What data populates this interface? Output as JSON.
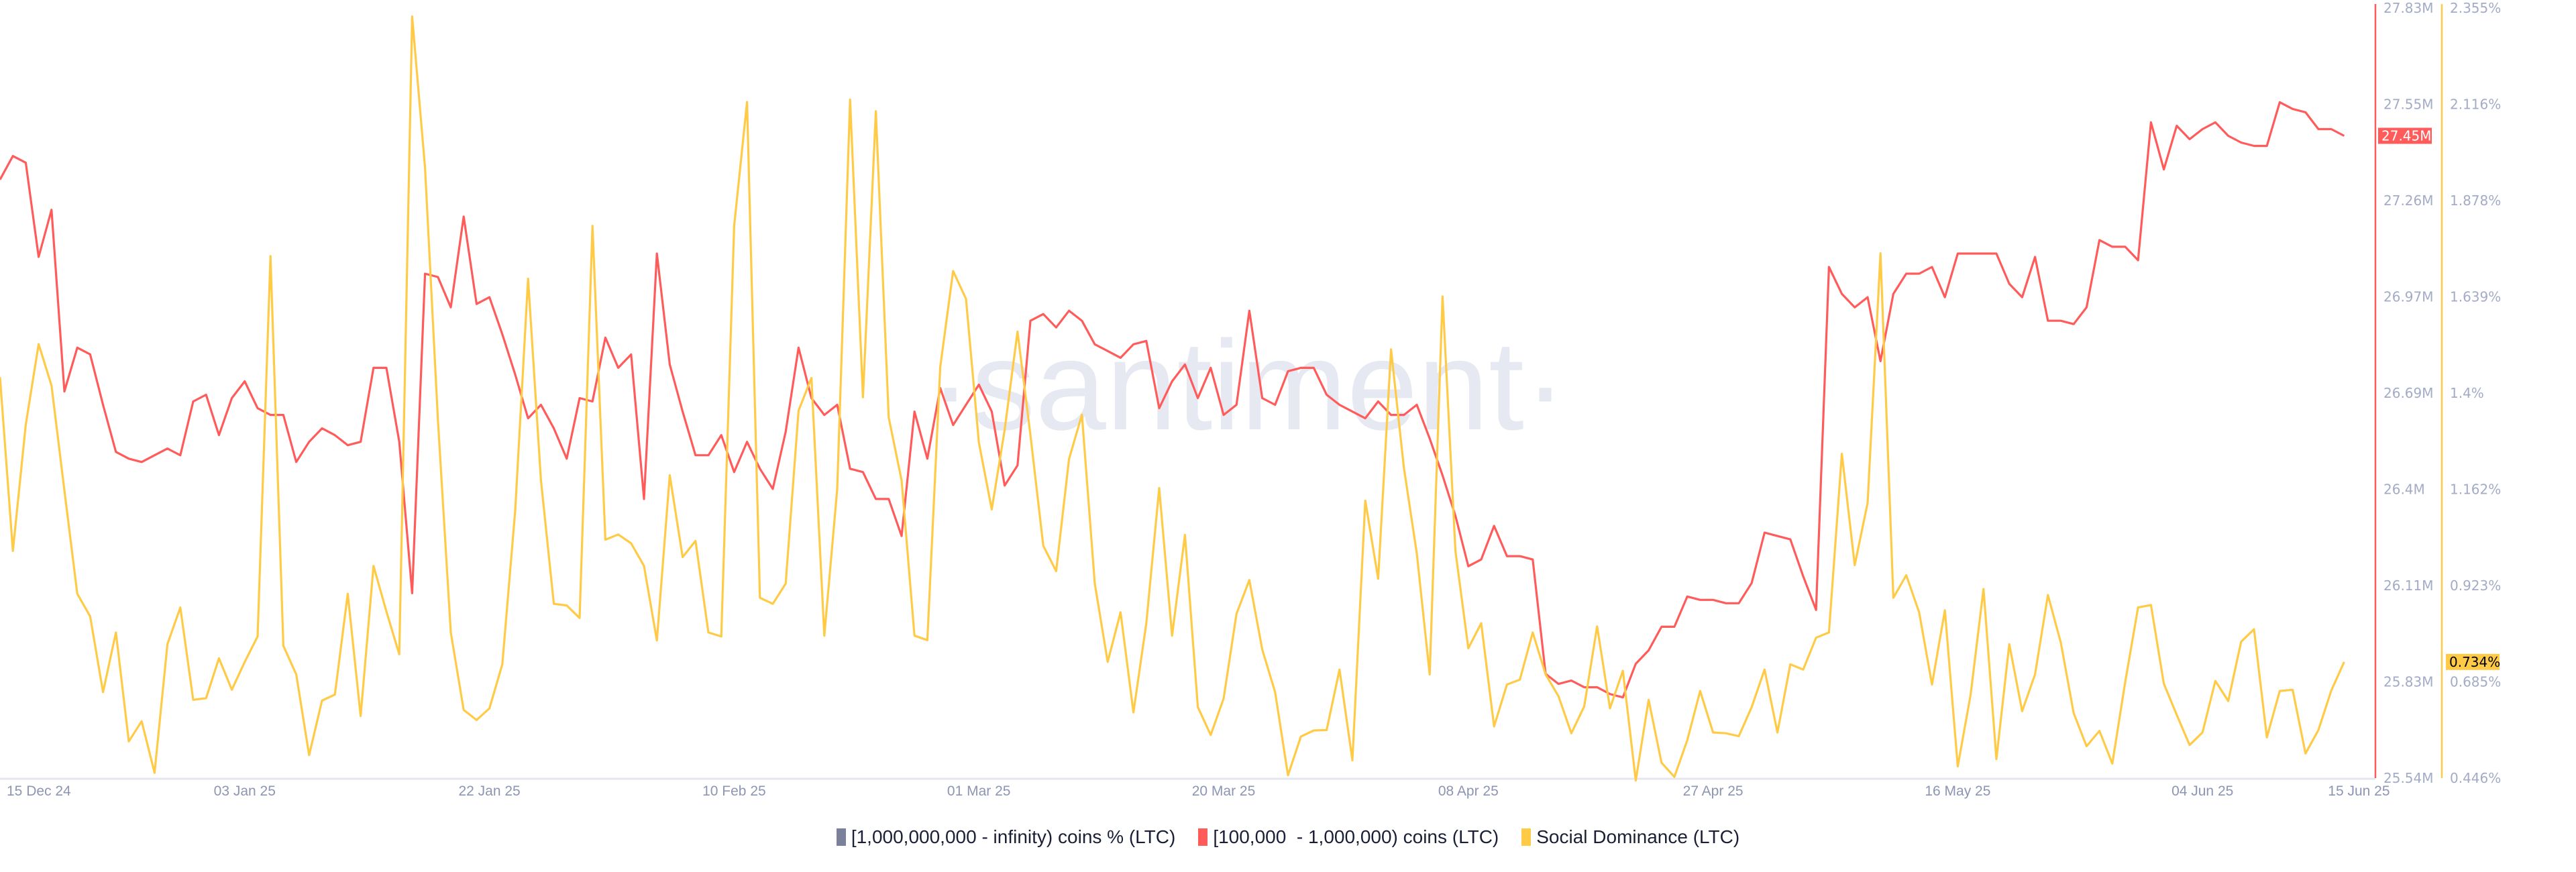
{
  "chart_data": {
    "type": "line",
    "watermark": "·santiment·",
    "dates": {
      "first": "2024-12-15",
      "last": "2025-06-15",
      "interval": "daily"
    },
    "x_ticks": [
      "15 Dec 24",
      "03 Jan 25",
      "22 Jan 25",
      "10 Feb 25",
      "01 Mar 25",
      "20 Mar 25",
      "08 Apr 25",
      "27 Apr 25",
      "16 May 25",
      "04 Jun 25",
      "15 Jun 25"
    ],
    "x_tick_days": [
      0,
      19,
      38,
      57,
      76,
      95,
      114,
      133,
      152,
      171,
      182
    ],
    "grid": false,
    "legend_position": "bottom",
    "legend": [
      {
        "label": "[1,000,000,000 - infinity) coins % (LTC)",
        "color": "#7a8198"
      },
      {
        "label": "[100,000  - 1,000,000) coins (LTC)",
        "color": "#ff5b5b"
      },
      {
        "label": "Social Dominance (LTC)",
        "color": "#ffcb47"
      }
    ],
    "axes": {
      "red": {
        "ticks": [
          "27.83M",
          "27.55M",
          "27.26M",
          "26.97M",
          "26.69M",
          "26.4M",
          "26.11M",
          "25.83M",
          "25.54M"
        ],
        "ylim": [
          25.54,
          27.83
        ],
        "color": "#ff5b5b",
        "current_label": "27.45M",
        "current_value": 27.45
      },
      "yellow": {
        "ticks": [
          "2.355%",
          "2.116%",
          "1.878%",
          "1.639%",
          "1.4%",
          "1.162%",
          "0.923%",
          "0.685%",
          "0.446%"
        ],
        "ylim": [
          0.446,
          2.355
        ],
        "color": "#ffcb47",
        "current_label": "0.734%",
        "current_value": 0.734
      }
    },
    "series": [
      {
        "name": "[100,000  - 1,000,000) coins (LTC)",
        "axis": "red",
        "unit": "M coins",
        "values": [
          27.32,
          27.39,
          27.37,
          27.09,
          27.23,
          26.69,
          26.82,
          26.8,
          26.65,
          26.51,
          26.49,
          26.48,
          26.5,
          26.52,
          26.5,
          26.66,
          26.68,
          26.56,
          26.67,
          26.72,
          26.64,
          26.62,
          26.62,
          26.48,
          26.54,
          26.58,
          26.56,
          26.53,
          26.54,
          26.76,
          26.76,
          26.54,
          26.09,
          27.04,
          27.03,
          26.94,
          27.21,
          26.95,
          26.97,
          26.86,
          26.74,
          26.61,
          26.65,
          26.58,
          26.49,
          26.67,
          26.66,
          26.85,
          26.76,
          26.8,
          26.37,
          27.1,
          26.77,
          26.63,
          26.5,
          26.5,
          26.56,
          26.45,
          26.54,
          26.46,
          26.4,
          26.57,
          26.82,
          26.67,
          26.62,
          26.65,
          26.46,
          26.45,
          26.37,
          26.37,
          26.26,
          26.63,
          26.49,
          26.7,
          26.59,
          26.65,
          26.71,
          26.63,
          26.41,
          26.47,
          26.9,
          26.92,
          26.88,
          26.93,
          26.9,
          26.83,
          26.81,
          26.79,
          26.83,
          26.84,
          26.64,
          26.72,
          26.77,
          26.67,
          26.76,
          26.62,
          26.65,
          26.93,
          26.67,
          26.65,
          26.75,
          26.76,
          26.76,
          26.68,
          26.65,
          26.63,
          26.61,
          26.66,
          26.62,
          26.62,
          26.65,
          26.55,
          26.44,
          26.32,
          26.17,
          26.19,
          26.29,
          26.2,
          26.2,
          26.19,
          25.85,
          25.82,
          25.83,
          25.81,
          25.81,
          25.79,
          25.78,
          25.88,
          25.92,
          25.99,
          25.99,
          26.08,
          26.07,
          26.07,
          26.06,
          26.06,
          26.12,
          26.27,
          26.26,
          26.25,
          26.14,
          26.04,
          27.06,
          26.98,
          26.94,
          26.97,
          26.78,
          26.98,
          27.04,
          27.04,
          27.06,
          26.97,
          27.1,
          27.1,
          27.1,
          27.1,
          27.01,
          26.97,
          27.09,
          26.9,
          26.9,
          26.89,
          26.94,
          27.14,
          27.12,
          27.12,
          27.08,
          27.49,
          27.35,
          27.48,
          27.44,
          27.47,
          27.49,
          27.45,
          27.43,
          27.42,
          27.42,
          27.55,
          27.53,
          27.52,
          27.47,
          27.47,
          27.45
        ]
      },
      {
        "name": "Social Dominance (LTC)",
        "axis": "yellow",
        "unit": "%",
        "values": [
          1.44,
          1.009,
          1.322,
          1.522,
          1.419,
          1.159,
          0.903,
          0.847,
          0.659,
          0.807,
          0.537,
          0.587,
          0.459,
          0.778,
          0.869,
          0.64,
          0.644,
          0.743,
          0.665,
          0.734,
          0.797,
          1.74,
          0.774,
          0.703,
          0.503,
          0.638,
          0.653,
          0.903,
          0.6,
          0.972,
          0.859,
          0.753,
          2.334,
          1.959,
          1.334,
          0.807,
          0.615,
          0.59,
          0.619,
          0.728,
          1.109,
          1.684,
          1.184,
          0.878,
          0.874,
          0.843,
          1.815,
          1.037,
          1.05,
          1.028,
          0.972,
          0.787,
          1.197,
          0.994,
          1.034,
          0.807,
          0.797,
          1.815,
          2.122,
          0.893,
          0.878,
          0.928,
          1.357,
          1.438,
          0.799,
          1.162,
          2.128,
          1.39,
          2.099,
          1.34,
          1.184,
          0.799,
          0.788,
          1.465,
          1.703,
          1.634,
          1.278,
          1.112,
          1.309,
          1.553,
          1.297,
          1.022,
          0.959,
          1.237,
          1.347,
          0.928,
          0.734,
          0.857,
          0.609,
          0.83,
          1.165,
          0.799,
          1.049,
          0.622,
          0.553,
          0.643,
          0.853,
          0.937,
          0.765,
          0.659,
          0.453,
          0.549,
          0.564,
          0.565,
          0.715,
          0.49,
          1.134,
          0.94,
          1.509,
          1.215,
          1.003,
          0.703,
          1.64,
          1.009,
          0.768,
          0.83,
          0.574,
          0.678,
          0.69,
          0.807,
          0.703,
          0.649,
          0.557,
          0.624,
          0.822,
          0.619,
          0.712,
          0.44,
          0.64,
          0.484,
          0.449,
          0.54,
          0.662,
          0.559,
          0.557,
          0.55,
          0.622,
          0.715,
          0.559,
          0.728,
          0.715,
          0.794,
          0.807,
          1.25,
          0.974,
          1.128,
          1.747,
          0.893,
          0.949,
          0.857,
          0.678,
          0.862,
          0.475,
          0.653,
          0.915,
          0.493,
          0.778,
          0.612,
          0.703,
          0.9,
          0.782,
          0.607,
          0.525,
          0.563,
          0.482,
          0.684,
          0.869,
          0.875,
          0.68,
          0.603,
          0.528,
          0.559,
          0.687,
          0.637,
          0.784,
          0.815,
          0.547,
          0.662,
          0.665,
          0.507,
          0.565,
          0.663,
          0.734
        ]
      }
    ]
  }
}
